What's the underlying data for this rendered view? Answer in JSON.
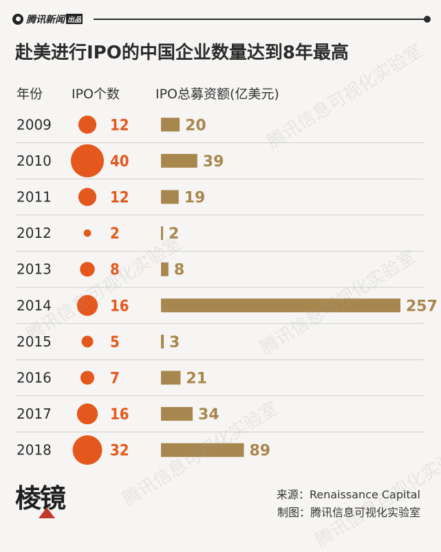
{
  "header": {
    "brand": "腾讯新闻",
    "brand_tag": "出品"
  },
  "title": "赴美进行IPO的中国企业数量达到8年最高",
  "columns": {
    "year": "年份",
    "count": "IPO个数",
    "amount": "IPO总募资额(亿美元)"
  },
  "footer": {
    "logo": "棱镜",
    "source": "来源：Renaissance Capital",
    "credit": "制图：腾讯信息可视化实验室"
  },
  "watermark": "腾讯信息可视化实验室",
  "colors": {
    "circle": "#e4581d",
    "bar": "#a8874f",
    "divider": "#cfcfcf",
    "background": "#f6f5f3"
  },
  "chart_data": {
    "type": "table",
    "title": "赴美进行IPO的中国企业数量达到8年最高",
    "categories": [
      "2009",
      "2010",
      "2011",
      "2012",
      "2013",
      "2014",
      "2015",
      "2016",
      "2017",
      "2018"
    ],
    "series": [
      {
        "name": "IPO个数",
        "encoding": "circle",
        "values": [
          12,
          40,
          12,
          2,
          8,
          16,
          5,
          7,
          16,
          32
        ]
      },
      {
        "name": "IPO总募资额(亿美元)",
        "encoding": "bar",
        "values": [
          20,
          39,
          19,
          2,
          8,
          257,
          3,
          21,
          34,
          89
        ]
      }
    ]
  }
}
